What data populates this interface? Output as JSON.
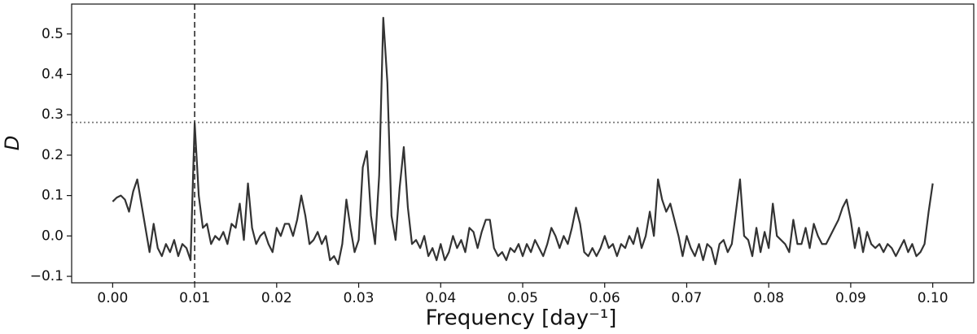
{
  "chart_data": {
    "type": "line",
    "xlabel": "Frequency [day⁻¹]",
    "ylabel": "D",
    "x": [
      0.0,
      0.0005,
      0.001,
      0.0015,
      0.002,
      0.0025,
      0.003,
      0.0035,
      0.004,
      0.0045,
      0.005,
      0.0055,
      0.006,
      0.0065,
      0.007,
      0.0075,
      0.008,
      0.0085,
      0.009,
      0.0095,
      0.01,
      0.0105,
      0.011,
      0.0115,
      0.012,
      0.0125,
      0.013,
      0.0135,
      0.014,
      0.0145,
      0.015,
      0.0155,
      0.016,
      0.0165,
      0.017,
      0.0175,
      0.018,
      0.0185,
      0.019,
      0.0195,
      0.02,
      0.0205,
      0.021,
      0.0215,
      0.022,
      0.0225,
      0.023,
      0.0235,
      0.024,
      0.0245,
      0.025,
      0.0255,
      0.026,
      0.0265,
      0.027,
      0.0275,
      0.028,
      0.0285,
      0.029,
      0.0295,
      0.03,
      0.0305,
      0.031,
      0.0315,
      0.032,
      0.0325,
      0.033,
      0.0335,
      0.034,
      0.0345,
      0.035,
      0.0355,
      0.036,
      0.0365,
      0.037,
      0.0375,
      0.038,
      0.0385,
      0.039,
      0.0395,
      0.04,
      0.0405,
      0.041,
      0.0415,
      0.042,
      0.0425,
      0.043,
      0.0435,
      0.044,
      0.0445,
      0.045,
      0.0455,
      0.046,
      0.0465,
      0.047,
      0.0475,
      0.048,
      0.0485,
      0.049,
      0.0495,
      0.05,
      0.0505,
      0.051,
      0.0515,
      0.052,
      0.0525,
      0.053,
      0.0535,
      0.054,
      0.0545,
      0.055,
      0.0555,
      0.056,
      0.0565,
      0.057,
      0.0575,
      0.058,
      0.0585,
      0.059,
      0.0595,
      0.06,
      0.0605,
      0.061,
      0.0615,
      0.062,
      0.0625,
      0.063,
      0.0635,
      0.064,
      0.0645,
      0.065,
      0.0655,
      0.066,
      0.0665,
      0.067,
      0.0675,
      0.068,
      0.0685,
      0.069,
      0.0695,
      0.07,
      0.0705,
      0.071,
      0.0715,
      0.072,
      0.0725,
      0.073,
      0.0735,
      0.074,
      0.0745,
      0.075,
      0.0755,
      0.076,
      0.0765,
      0.077,
      0.0775,
      0.078,
      0.0785,
      0.079,
      0.0795,
      0.08,
      0.0805,
      0.081,
      0.0815,
      0.082,
      0.0825,
      0.083,
      0.0835,
      0.084,
      0.0845,
      0.085,
      0.0855,
      0.086,
      0.0865,
      0.087,
      0.0875,
      0.088,
      0.0885,
      0.089,
      0.0895,
      0.09,
      0.0905,
      0.091,
      0.0915,
      0.092,
      0.0925,
      0.093,
      0.0935,
      0.094,
      0.0945,
      0.095,
      0.0955,
      0.096,
      0.0965,
      0.097,
      0.0975,
      0.098,
      0.0985,
      0.099,
      0.0995,
      0.1
    ],
    "series": [
      {
        "color": "#333333",
        "values": [
          0.085,
          0.095,
          0.1,
          0.09,
          0.06,
          0.11,
          0.14,
          0.08,
          0.02,
          -0.04,
          0.03,
          -0.03,
          -0.05,
          -0.02,
          -0.04,
          -0.01,
          -0.05,
          -0.02,
          -0.03,
          -0.06,
          0.28,
          0.1,
          0.02,
          0.03,
          -0.02,
          0.0,
          -0.01,
          0.01,
          -0.02,
          0.03,
          0.02,
          0.08,
          -0.01,
          0.13,
          0.02,
          -0.02,
          0.0,
          0.01,
          -0.02,
          -0.04,
          0.02,
          0.0,
          0.03,
          0.03,
          0.0,
          0.04,
          0.1,
          0.05,
          -0.02,
          -0.01,
          0.01,
          -0.02,
          0.0,
          -0.06,
          -0.05,
          -0.07,
          -0.02,
          0.09,
          0.02,
          -0.04,
          -0.01,
          0.17,
          0.21,
          0.05,
          -0.02,
          0.15,
          0.54,
          0.38,
          0.05,
          -0.01,
          0.12,
          0.22,
          0.07,
          -0.02,
          -0.01,
          -0.03,
          0.0,
          -0.05,
          -0.03,
          -0.06,
          -0.02,
          -0.06,
          -0.04,
          0.0,
          -0.03,
          -0.01,
          -0.04,
          0.02,
          0.01,
          -0.03,
          0.01,
          0.04,
          0.04,
          -0.03,
          -0.05,
          -0.04,
          -0.06,
          -0.03,
          -0.04,
          -0.02,
          -0.05,
          -0.02,
          -0.04,
          -0.01,
          -0.03,
          -0.05,
          -0.02,
          0.02,
          0.0,
          -0.03,
          0.0,
          -0.02,
          0.02,
          0.07,
          0.03,
          -0.04,
          -0.05,
          -0.03,
          -0.05,
          -0.03,
          0.0,
          -0.03,
          -0.02,
          -0.05,
          -0.02,
          -0.03,
          0.0,
          -0.02,
          0.02,
          -0.03,
          0.0,
          0.06,
          0.0,
          0.14,
          0.09,
          0.06,
          0.08,
          0.04,
          0.0,
          -0.05,
          0.0,
          -0.03,
          -0.05,
          -0.02,
          -0.06,
          -0.02,
          -0.03,
          -0.07,
          -0.02,
          -0.01,
          -0.04,
          -0.02,
          0.06,
          0.14,
          0.0,
          -0.01,
          -0.05,
          0.02,
          -0.04,
          0.01,
          -0.03,
          0.08,
          0.0,
          -0.01,
          -0.02,
          -0.04,
          0.04,
          -0.02,
          -0.02,
          0.02,
          -0.03,
          0.03,
          0.0,
          -0.02,
          -0.02,
          0.0,
          0.02,
          0.04,
          0.07,
          0.09,
          0.04,
          -0.03,
          0.02,
          -0.04,
          0.01,
          -0.02,
          -0.03,
          -0.02,
          -0.04,
          -0.02,
          -0.03,
          -0.05,
          -0.03,
          -0.01,
          -0.04,
          -0.02,
          -0.05,
          -0.04,
          -0.02,
          0.06,
          0.13
        ]
      }
    ],
    "xlim": [
      -0.005,
      0.105
    ],
    "ylim": [
      -0.116,
      0.574
    ],
    "xticks": [
      {
        "value": 0,
        "label": "0.00"
      },
      0.01,
      0.02,
      0.03,
      0.04,
      0.05,
      0.06,
      0.07,
      0.08,
      0.09,
      {
        "value": 0.1,
        "label": "0.10"
      }
    ],
    "yticks": [
      {
        "value": -0.1,
        "label": "−0.1"
      },
      {
        "value": 0,
        "label": "0.0"
      },
      0.1,
      0.2,
      0.3,
      0.4,
      0.5
    ],
    "hline": 0.281,
    "vline": 0.01
  }
}
